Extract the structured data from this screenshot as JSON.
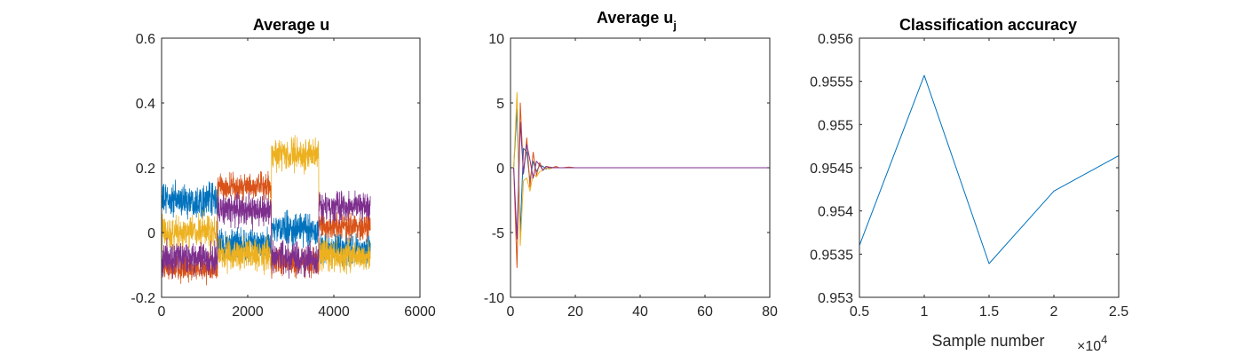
{
  "chart_data": [
    {
      "type": "line",
      "title": "Average u",
      "xlim": [
        0,
        6000
      ],
      "ylim": [
        -0.2,
        0.6
      ],
      "xticks": [
        0,
        2000,
        4000,
        6000
      ],
      "yticks": [
        -0.2,
        0,
        0.2,
        0.4,
        0.6
      ],
      "xtick_labels": [
        "0",
        "2000",
        "4000",
        "6000"
      ],
      "ytick_labels": [
        "-0.2",
        "0",
        "0.2",
        "0.4",
        "0.6"
      ],
      "n_samples": 4850,
      "segment_bounds": [
        0,
        1300,
        2550,
        3650,
        4850
      ],
      "series": [
        {
          "color": "#0072BD",
          "segment_levels": [
            0.1,
            -0.04,
            0.01,
            -0.05
          ],
          "noise": 0.06
        },
        {
          "color": "#D95319",
          "segment_levels": [
            -0.11,
            0.14,
            -0.09,
            0.02
          ],
          "noise": 0.05
        },
        {
          "color": "#EDB120",
          "segment_levels": [
            0.0,
            -0.07,
            0.24,
            -0.07
          ],
          "noise": 0.06
        },
        {
          "color": "#7E2F8E",
          "segment_levels": [
            -0.08,
            0.07,
            -0.08,
            0.08
          ],
          "noise": 0.06
        }
      ]
    },
    {
      "type": "line",
      "title": "Average u",
      "title_subscript": "j",
      "xlim": [
        0,
        80
      ],
      "ylim": [
        -10,
        10
      ],
      "xticks": [
        0,
        20,
        40,
        60,
        80
      ],
      "yticks": [
        -10,
        -5,
        0,
        5,
        10
      ],
      "xtick_labels": [
        "0",
        "20",
        "40",
        "60",
        "80"
      ],
      "ytick_labels": [
        "-10",
        "-5",
        "0",
        "5",
        "10"
      ],
      "series": [
        {
          "color": "#0072BD",
          "x": [
            1,
            2,
            3,
            4,
            5,
            6,
            7,
            8,
            9,
            10,
            11,
            12,
            13,
            14,
            15,
            16,
            18,
            20,
            25,
            30,
            40,
            50,
            60,
            70,
            80
          ],
          "y": [
            0,
            4.5,
            -5.0,
            1.5,
            1.2,
            -1.0,
            0.5,
            -0.3,
            0.2,
            0.1,
            -0.1,
            0.05,
            0.02,
            0,
            0,
            0,
            0,
            0,
            0,
            0,
            0,
            0,
            0,
            0,
            0
          ]
        },
        {
          "color": "#D95319",
          "x": [
            1,
            2,
            3,
            4,
            5,
            6,
            7,
            8,
            9,
            10,
            11,
            12,
            13,
            14,
            15,
            16,
            18,
            20,
            25,
            30,
            40,
            50,
            60,
            70,
            80
          ],
          "y": [
            0,
            -7.7,
            5.0,
            -0.5,
            2.3,
            -1.5,
            1.2,
            -0.6,
            0.4,
            -0.2,
            0.1,
            0.05,
            0,
            0.1,
            0,
            0,
            0.05,
            0,
            0,
            0,
            0,
            0,
            0,
            0,
            0
          ]
        },
        {
          "color": "#EDB120",
          "x": [
            1,
            2,
            3,
            4,
            5,
            6,
            7,
            8,
            9,
            10,
            11,
            12,
            13,
            14,
            15,
            16,
            18,
            20,
            25,
            30,
            40,
            50,
            60,
            70,
            80
          ],
          "y": [
            0,
            5.8,
            -6.0,
            -1.0,
            -0.8,
            -1.8,
            -0.5,
            -0.7,
            -0.3,
            -0.2,
            0,
            -0.1,
            0,
            0,
            0,
            0,
            0,
            0,
            0,
            0,
            0,
            0,
            0,
            0,
            0
          ]
        },
        {
          "color": "#7E2F8E",
          "x": [
            1,
            2,
            3,
            4,
            5,
            6,
            7,
            8,
            9,
            10,
            11,
            12,
            13,
            14,
            15,
            16,
            18,
            20,
            25,
            30,
            40,
            50,
            60,
            70,
            80
          ],
          "y": [
            0,
            -5.5,
            3.5,
            -0.4,
            1.8,
            0.6,
            -0.8,
            0.5,
            0.2,
            -0.2,
            0.1,
            0,
            0,
            0,
            0,
            0,
            0,
            0,
            0,
            0,
            0,
            0,
            0,
            0,
            0
          ]
        }
      ]
    },
    {
      "type": "line",
      "title": "Classification accuracy",
      "xlabel": "Sample number",
      "x_multiplier_base": "×10",
      "x_multiplier_exp": "4",
      "xlim": [
        0.5,
        2.5
      ],
      "ylim": [
        0.953,
        0.956
      ],
      "xticks": [
        0.5,
        1,
        1.5,
        2,
        2.5
      ],
      "yticks": [
        0.953,
        0.9535,
        0.954,
        0.9545,
        0.955,
        0.9555,
        0.956
      ],
      "xtick_labels": [
        "0.5",
        "1",
        "1.5",
        "2",
        "2.5"
      ],
      "ytick_labels": [
        "0.953",
        "0.9535",
        "0.954",
        "0.9545",
        "0.955",
        "0.9555",
        "0.956"
      ],
      "series": [
        {
          "color": "#0072BD",
          "x": [
            0.5,
            1.0,
            1.5,
            2.0,
            2.5
          ],
          "y": [
            0.9536,
            0.95557,
            0.95339,
            0.95423,
            0.95464
          ]
        }
      ]
    }
  ]
}
